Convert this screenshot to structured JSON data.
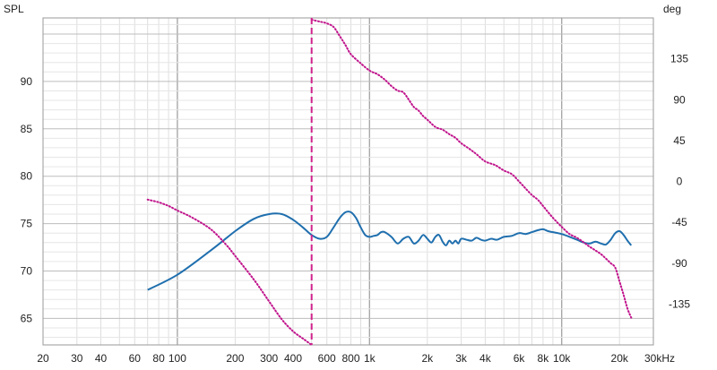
{
  "chart_data": {
    "type": "line",
    "left_axis_label": "SPL",
    "right_axis_label": "deg",
    "x_scale": "log",
    "x_unit": "Hz",
    "xlim": [
      20,
      30000
    ],
    "x_ticks": [
      {
        "value": 20,
        "label": "20"
      },
      {
        "value": 30,
        "label": "30"
      },
      {
        "value": 40,
        "label": "40"
      },
      {
        "value": 60,
        "label": "60"
      },
      {
        "value": 80,
        "label": "80"
      },
      {
        "value": 100,
        "label": "100"
      },
      {
        "value": 200,
        "label": "200"
      },
      {
        "value": 300,
        "label": "300"
      },
      {
        "value": 400,
        "label": "400"
      },
      {
        "value": 600,
        "label": "600"
      },
      {
        "value": 800,
        "label": "800"
      },
      {
        "value": 1000,
        "label": "1k"
      },
      {
        "value": 2000,
        "label": "2k"
      },
      {
        "value": 3000,
        "label": "3k"
      },
      {
        "value": 4000,
        "label": "4k"
      },
      {
        "value": 6000,
        "label": "6k"
      },
      {
        "value": 8000,
        "label": "8k"
      },
      {
        "value": 10000,
        "label": "10k"
      },
      {
        "value": 20000,
        "label": "20k"
      },
      {
        "value": 30000,
        "label": "30kHz"
      }
    ],
    "ylim_left": [
      62.2,
      96.7
    ],
    "y_ticks_left": [
      {
        "value": 65,
        "label": "65"
      },
      {
        "value": 70,
        "label": "70"
      },
      {
        "value": 75,
        "label": "75"
      },
      {
        "value": 80,
        "label": "80"
      },
      {
        "value": 85,
        "label": "85"
      },
      {
        "value": 90,
        "label": "90"
      }
    ],
    "ylim_right": [
      -180,
      180
    ],
    "y_ticks_right": [
      {
        "value": 135,
        "label": "135"
      },
      {
        "value": 90,
        "label": "90"
      },
      {
        "value": 45,
        "label": "45"
      },
      {
        "value": 0,
        "label": "0"
      },
      {
        "value": -45,
        "label": "-45"
      },
      {
        "value": -90,
        "label": "-90"
      },
      {
        "value": -135,
        "label": "-135"
      }
    ],
    "grid": true,
    "marker_line": {
      "x": 500,
      "color": "#d0228c",
      "style": "dashed"
    },
    "series": [
      {
        "axis": "left",
        "color": "#1f6fae",
        "style": "solid",
        "x": [
          70,
          100,
          150,
          200,
          250,
          300,
          350,
          400,
          450,
          500,
          550,
          600,
          650,
          700,
          750,
          800,
          850,
          900,
          950,
          1000,
          1050,
          1100,
          1150,
          1200,
          1300,
          1400,
          1500,
          1600,
          1700,
          1800,
          1900,
          2000,
          2100,
          2200,
          2300,
          2400,
          2500,
          2600,
          2700,
          2800,
          2900,
          3000,
          3200,
          3400,
          3600,
          3800,
          4000,
          4300,
          4600,
          5000,
          5500,
          6000,
          6500,
          7000,
          7500,
          8000,
          8500,
          9000,
          10000,
          11000,
          12000,
          13000,
          14000,
          15000,
          16000,
          17000,
          18000,
          19000,
          20000,
          21000,
          22000,
          23000
        ],
        "values": [
          68.0,
          69.6,
          72.2,
          74.2,
          75.5,
          76.0,
          76.0,
          75.4,
          74.6,
          73.8,
          73.4,
          73.6,
          74.6,
          75.6,
          76.2,
          76.2,
          75.6,
          74.6,
          73.8,
          73.6,
          73.7,
          73.8,
          74.1,
          74.1,
          73.6,
          72.9,
          73.4,
          73.6,
          72.9,
          73.2,
          73.8,
          73.4,
          73.0,
          73.6,
          73.8,
          73.1,
          72.7,
          73.2,
          72.9,
          73.2,
          72.9,
          73.4,
          73.3,
          73.2,
          73.5,
          73.3,
          73.2,
          73.4,
          73.3,
          73.6,
          73.7,
          74.0,
          73.9,
          74.1,
          74.3,
          74.4,
          74.2,
          74.1,
          73.9,
          73.6,
          73.3,
          73.0,
          72.9,
          73.1,
          72.9,
          72.8,
          73.3,
          74.0,
          74.2,
          73.8,
          73.2,
          72.7
        ]
      },
      {
        "axis": "right",
        "color": "#c0148c",
        "style": "dotted",
        "x": [
          70,
          80,
          90,
          100,
          120,
          150,
          180,
          200,
          250,
          300,
          350,
          400,
          450,
          500
        ],
        "values": [
          -20,
          -23,
          -27,
          -32,
          -40,
          -53,
          -70,
          -82,
          -108,
          -132,
          -152,
          -165,
          -173,
          -180
        ]
      },
      {
        "axis": "right",
        "color": "#c0148c",
        "style": "dotted",
        "x": [
          500,
          550,
          600,
          650,
          700,
          750,
          800,
          900,
          1000,
          1100,
          1200,
          1300,
          1400,
          1500,
          1600,
          1700,
          1800,
          1900,
          2000,
          2200,
          2400,
          2600,
          2800,
          3000,
          3300,
          3600,
          4000,
          4500,
          5000,
          5500,
          6000,
          6500,
          7000,
          7500,
          8000,
          9000,
          10000,
          11000,
          12000,
          13000,
          14000,
          15000,
          16000,
          17000,
          18000,
          19000,
          20000,
          21000,
          22000,
          23000
        ],
        "values": [
          178,
          176,
          174,
          170,
          160,
          150,
          140,
          130,
          122,
          118,
          112,
          105,
          100,
          98,
          90,
          82,
          78,
          72,
          68,
          60,
          57,
          52,
          48,
          42,
          36,
          30,
          22,
          18,
          12,
          8,
          0,
          -8,
          -15,
          -20,
          -27,
          -40,
          -50,
          -58,
          -62,
          -67,
          -72,
          -76,
          -80,
          -85,
          -90,
          -95,
          -110,
          -125,
          -140,
          -150
        ]
      }
    ]
  }
}
